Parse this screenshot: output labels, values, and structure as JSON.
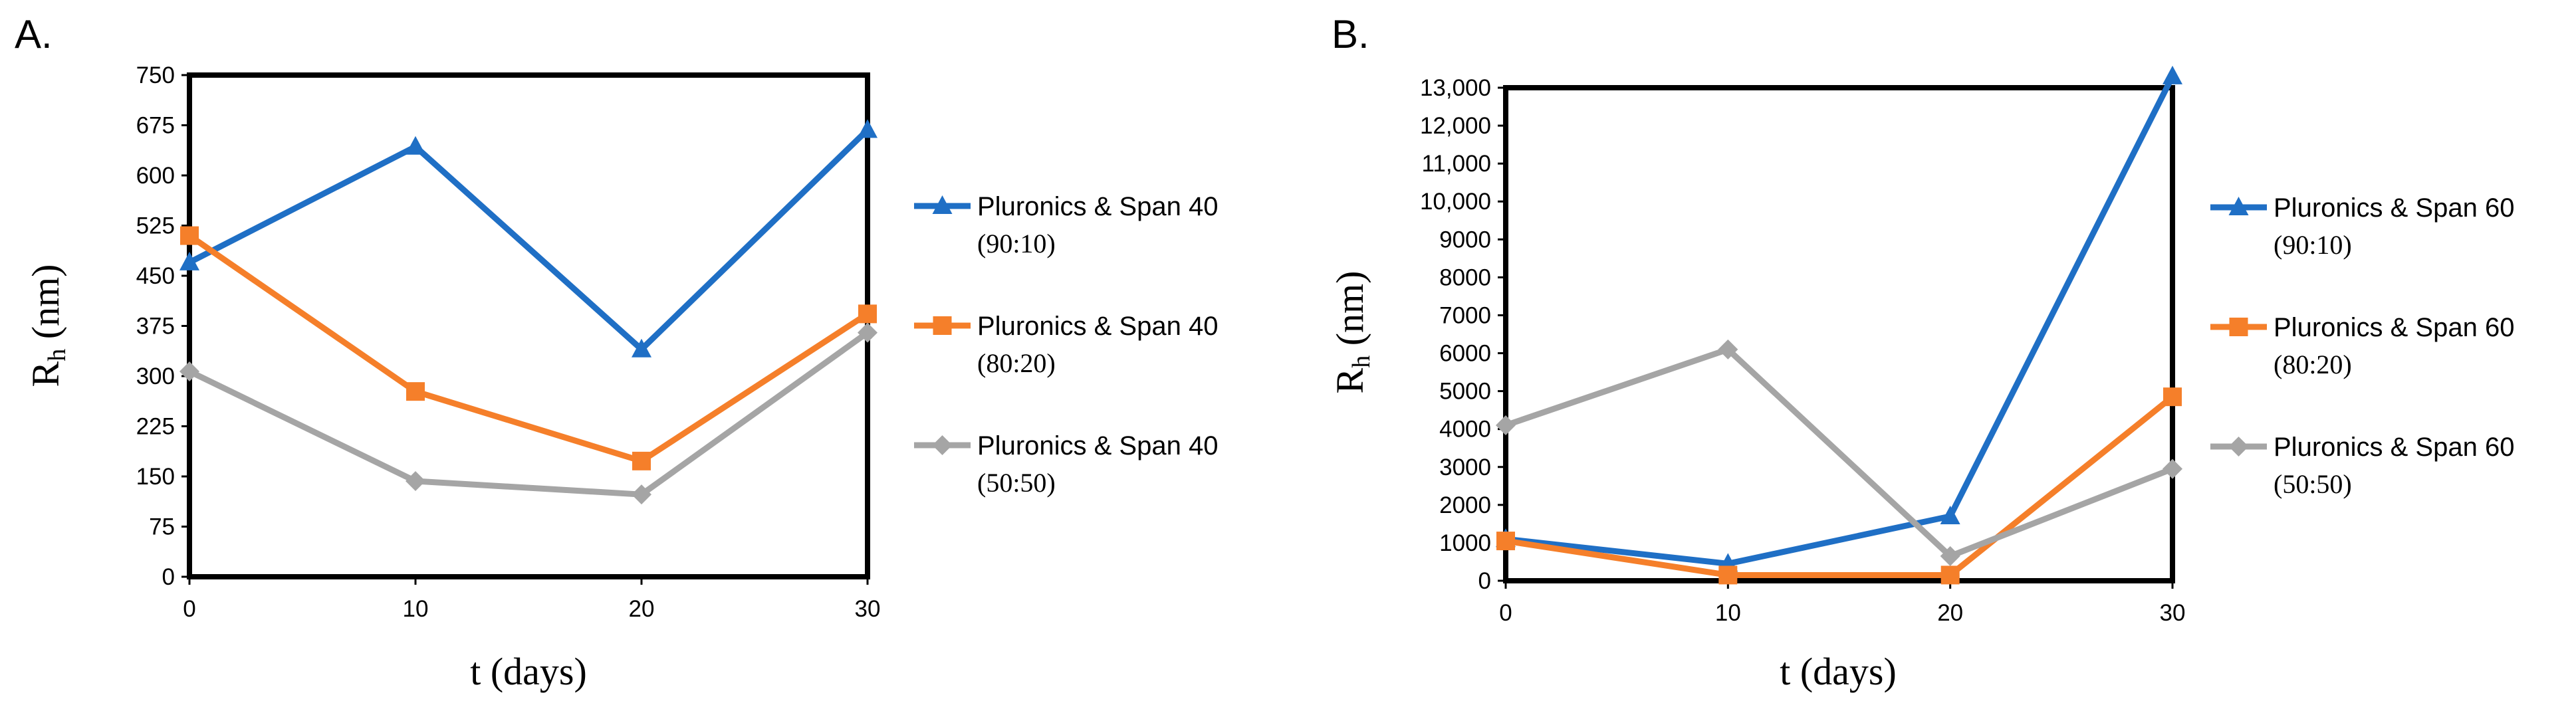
{
  "chart_data": [
    {
      "type": "line",
      "panel_label": "A.",
      "title": "",
      "xlabel": "t (days)",
      "ylabel_main": "R",
      "ylabel_sub": "h",
      "ylabel_unit": " (nm)",
      "xlim": [
        0,
        30
      ],
      "ylim": [
        0,
        750
      ],
      "x": [
        0,
        10,
        20,
        30
      ],
      "x_tick_labels": [
        "0",
        "10",
        "20",
        "30"
      ],
      "y_ticks": [
        0,
        75,
        150,
        225,
        300,
        375,
        450,
        525,
        600,
        675,
        750
      ],
      "y_tick_labels": [
        "0",
        "75",
        "150",
        "225",
        "300",
        "375",
        "450",
        "525",
        "600",
        "675",
        "750"
      ],
      "grid": false,
      "legend_position": "right",
      "series": [
        {
          "name": "Pluronics & Span 40",
          "ratio": "(90:10)",
          "color": "#1F6FC5",
          "marker": "triangle",
          "values": [
            470,
            643,
            340,
            668
          ]
        },
        {
          "name": "Pluronics & Span 40",
          "ratio": "(80:20)",
          "color": "#F57F2A",
          "marker": "square",
          "values": [
            510,
            277,
            173,
            393
          ]
        },
        {
          "name": "Pluronics & Span 40",
          "ratio": "(50:50)",
          "color": "#A5A5A5",
          "marker": "diamond",
          "values": [
            307,
            143,
            123,
            365
          ]
        }
      ]
    },
    {
      "type": "line",
      "panel_label": "B.",
      "title": "",
      "xlabel": "t (days)",
      "ylabel_main": "R",
      "ylabel_sub": "h",
      "ylabel_unit": " (nm)",
      "xlim": [
        0,
        30
      ],
      "ylim": [
        0,
        13000
      ],
      "x": [
        0,
        10,
        20,
        30
      ],
      "x_tick_labels": [
        "0",
        "10",
        "20",
        "30"
      ],
      "y_ticks": [
        0,
        1000,
        2000,
        3000,
        4000,
        5000,
        6000,
        7000,
        8000,
        9000,
        10000,
        11000,
        12000,
        13000
      ],
      "y_tick_labels": [
        "0",
        "1000",
        "2000",
        "3000",
        "4000",
        "5000",
        "6000",
        "7000",
        "8000",
        "9000",
        "10,000",
        "11,000",
        "12,000",
        "13,000"
      ],
      "grid": false,
      "legend_position": "right",
      "series": [
        {
          "name": "Pluronics & Span 60",
          "ratio": "(90:10)",
          "color": "#1F6FC5",
          "marker": "triangle",
          "values": [
            1100,
            450,
            1700,
            13300
          ]
        },
        {
          "name": "Pluronics & Span 60",
          "ratio": "(80:20)",
          "color": "#F57F2A",
          "marker": "square",
          "values": [
            1050,
            150,
            150,
            4850
          ]
        },
        {
          "name": "Pluronics & Span 60",
          "ratio": "(50:50)",
          "color": "#A5A5A5",
          "marker": "diamond",
          "values": [
            4100,
            6100,
            650,
            2950
          ]
        }
      ]
    }
  ]
}
